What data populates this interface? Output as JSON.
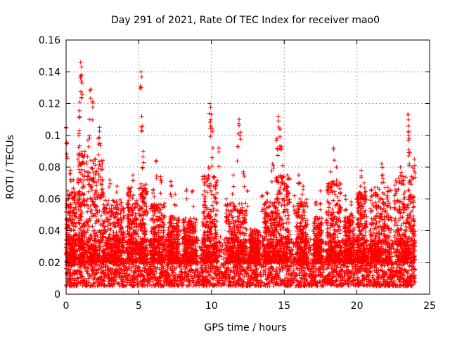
{
  "chart_data": {
    "type": "scatter",
    "title": "Day 291 of 2021, Rate Of TEC Index for receiver mao0",
    "xlabel": "GPS time / hours",
    "ylabel": "ROTI / TECUs",
    "xlim": [
      0,
      25
    ],
    "ylim": [
      0,
      0.16
    ],
    "x_ticks": [
      0,
      5,
      10,
      15,
      20,
      25
    ],
    "x_tick_labels": [
      "0",
      "5",
      "10",
      "15",
      "20",
      "25"
    ],
    "y_ticks": [
      0,
      0.02,
      0.04,
      0.06,
      0.08,
      0.1,
      0.12,
      0.14,
      0.16
    ],
    "y_tick_labels": [
      "0",
      "0.02",
      "0.04",
      "0.06",
      "0.08",
      "0.1",
      "0.12",
      "0.14",
      "0.16"
    ],
    "grid": true,
    "marker": "plus",
    "series_color": "#ff0000",
    "x_data_range": [
      0,
      24
    ],
    "baseline_band": [
      0.005,
      0.035
    ],
    "peaks": [
      {
        "x": 0.0,
        "y": 0.105
      },
      {
        "x": 0.05,
        "y": 0.095
      },
      {
        "x": 0.3,
        "y": 0.078
      },
      {
        "x": 0.5,
        "y": 0.072
      },
      {
        "x": 1.0,
        "y": 0.146
      },
      {
        "x": 1.05,
        "y": 0.138
      },
      {
        "x": 1.1,
        "y": 0.133
      },
      {
        "x": 0.95,
        "y": 0.121
      },
      {
        "x": 0.9,
        "y": 0.103
      },
      {
        "x": 1.7,
        "y": 0.129
      },
      {
        "x": 1.8,
        "y": 0.121
      },
      {
        "x": 1.6,
        "y": 0.11
      },
      {
        "x": 1.5,
        "y": 0.097
      },
      {
        "x": 2.3,
        "y": 0.105
      },
      {
        "x": 2.2,
        "y": 0.098
      },
      {
        "x": 2.0,
        "y": 0.085
      },
      {
        "x": 3.0,
        "y": 0.072
      },
      {
        "x": 3.5,
        "y": 0.068
      },
      {
        "x": 4.3,
        "y": 0.062
      },
      {
        "x": 4.6,
        "y": 0.075
      },
      {
        "x": 5.15,
        "y": 0.14
      },
      {
        "x": 5.2,
        "y": 0.112
      },
      {
        "x": 5.3,
        "y": 0.09
      },
      {
        "x": 6.0,
        "y": 0.066
      },
      {
        "x": 6.2,
        "y": 0.084
      },
      {
        "x": 6.5,
        "y": 0.074
      },
      {
        "x": 7.2,
        "y": 0.071
      },
      {
        "x": 7.5,
        "y": 0.063
      },
      {
        "x": 8.3,
        "y": 0.066
      },
      {
        "x": 8.7,
        "y": 0.065
      },
      {
        "x": 9.5,
        "y": 0.06
      },
      {
        "x": 9.9,
        "y": 0.12
      },
      {
        "x": 10.0,
        "y": 0.113
      },
      {
        "x": 9.95,
        "y": 0.106
      },
      {
        "x": 10.1,
        "y": 0.092
      },
      {
        "x": 9.8,
        "y": 0.08
      },
      {
        "x": 10.5,
        "y": 0.092
      },
      {
        "x": 11.0,
        "y": 0.06
      },
      {
        "x": 11.5,
        "y": 0.075
      },
      {
        "x": 11.9,
        "y": 0.11
      },
      {
        "x": 12.0,
        "y": 0.102
      },
      {
        "x": 11.8,
        "y": 0.093
      },
      {
        "x": 12.2,
        "y": 0.077
      },
      {
        "x": 12.5,
        "y": 0.065
      },
      {
        "x": 13.5,
        "y": 0.062
      },
      {
        "x": 13.8,
        "y": 0.064
      },
      {
        "x": 14.2,
        "y": 0.082
      },
      {
        "x": 14.6,
        "y": 0.112
      },
      {
        "x": 14.7,
        "y": 0.104
      },
      {
        "x": 14.5,
        "y": 0.098
      },
      {
        "x": 14.8,
        "y": 0.093
      },
      {
        "x": 14.9,
        "y": 0.081
      },
      {
        "x": 15.2,
        "y": 0.075
      },
      {
        "x": 15.7,
        "y": 0.062
      },
      {
        "x": 16.0,
        "y": 0.075
      },
      {
        "x": 16.3,
        "y": 0.068
      },
      {
        "x": 17.2,
        "y": 0.058
      },
      {
        "x": 17.5,
        "y": 0.065
      },
      {
        "x": 18.0,
        "y": 0.068
      },
      {
        "x": 18.2,
        "y": 0.077
      },
      {
        "x": 18.4,
        "y": 0.092
      },
      {
        "x": 18.6,
        "y": 0.08
      },
      {
        "x": 19.2,
        "y": 0.062
      },
      {
        "x": 19.6,
        "y": 0.058
      },
      {
        "x": 20.3,
        "y": 0.078
      },
      {
        "x": 20.5,
        "y": 0.07
      },
      {
        "x": 21.0,
        "y": 0.066
      },
      {
        "x": 21.3,
        "y": 0.062
      },
      {
        "x": 21.7,
        "y": 0.082
      },
      {
        "x": 21.8,
        "y": 0.075
      },
      {
        "x": 22.1,
        "y": 0.062
      },
      {
        "x": 22.6,
        "y": 0.058
      },
      {
        "x": 23.0,
        "y": 0.08
      },
      {
        "x": 23.2,
        "y": 0.074
      },
      {
        "x": 23.5,
        "y": 0.113
      },
      {
        "x": 23.55,
        "y": 0.106
      },
      {
        "x": 23.6,
        "y": 0.098
      },
      {
        "x": 23.65,
        "y": 0.089
      },
      {
        "x": 23.8,
        "y": 0.08
      },
      {
        "x": 23.95,
        "y": 0.085
      }
    ],
    "activity_bursts": [
      {
        "x_start": 0.0,
        "x_end": 0.7,
        "max": 0.065
      },
      {
        "x_start": 0.8,
        "x_end": 1.3,
        "max": 0.09
      },
      {
        "x_start": 1.4,
        "x_end": 2.6,
        "max": 0.085
      },
      {
        "x_start": 2.6,
        "x_end": 4.0,
        "max": 0.06
      },
      {
        "x_start": 4.2,
        "x_end": 4.9,
        "max": 0.068
      },
      {
        "x_start": 5.0,
        "x_end": 5.6,
        "max": 0.07
      },
      {
        "x_start": 5.8,
        "x_end": 6.8,
        "max": 0.058
      },
      {
        "x_start": 7.0,
        "x_end": 7.8,
        "max": 0.05
      },
      {
        "x_start": 8.0,
        "x_end": 9.0,
        "max": 0.048
      },
      {
        "x_start": 9.4,
        "x_end": 10.4,
        "max": 0.075
      },
      {
        "x_start": 11.0,
        "x_end": 12.4,
        "max": 0.058
      },
      {
        "x_start": 12.6,
        "x_end": 13.3,
        "max": 0.04
      },
      {
        "x_start": 13.6,
        "x_end": 14.4,
        "max": 0.058
      },
      {
        "x_start": 14.4,
        "x_end": 15.4,
        "max": 0.075
      },
      {
        "x_start": 15.8,
        "x_end": 16.6,
        "max": 0.06
      },
      {
        "x_start": 17.0,
        "x_end": 17.6,
        "max": 0.048
      },
      {
        "x_start": 17.9,
        "x_end": 18.9,
        "max": 0.072
      },
      {
        "x_start": 19.1,
        "x_end": 19.8,
        "max": 0.05
      },
      {
        "x_start": 20.0,
        "x_end": 20.7,
        "max": 0.065
      },
      {
        "x_start": 20.9,
        "x_end": 22.4,
        "max": 0.068
      },
      {
        "x_start": 22.6,
        "x_end": 24.0,
        "max": 0.075
      }
    ]
  }
}
